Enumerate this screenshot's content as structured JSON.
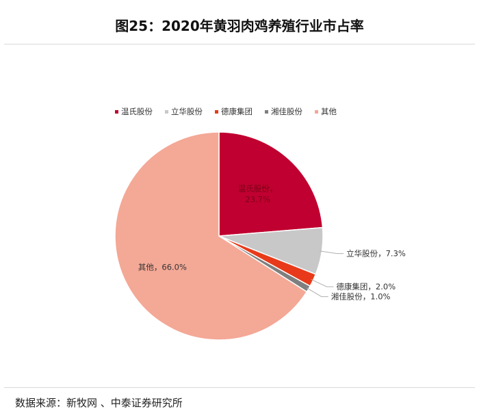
{
  "title": "图25：2020年黄羽肉鸡养殖行业市占率",
  "source": "数据来源：新牧网 、中泰证券研究所",
  "chart_data": {
    "type": "pie",
    "slices": [
      {
        "label": "温氏股份",
        "value": 23.7,
        "display": "23.7%",
        "color": "#c00030"
      },
      {
        "label": "立华股份",
        "value": 7.3,
        "display": "7.3%",
        "color": "#c8c8c8"
      },
      {
        "label": "德康集团",
        "value": 2.0,
        "display": "2.0%",
        "color": "#e83a1a"
      },
      {
        "label": "湘佳股份",
        "value": 1.0,
        "display": "1.0%",
        "color": "#7f7f7f"
      },
      {
        "label": "其他",
        "value": 66.0,
        "display": "66.0%",
        "color": "#f4a896"
      }
    ],
    "legend_position": "top"
  }
}
